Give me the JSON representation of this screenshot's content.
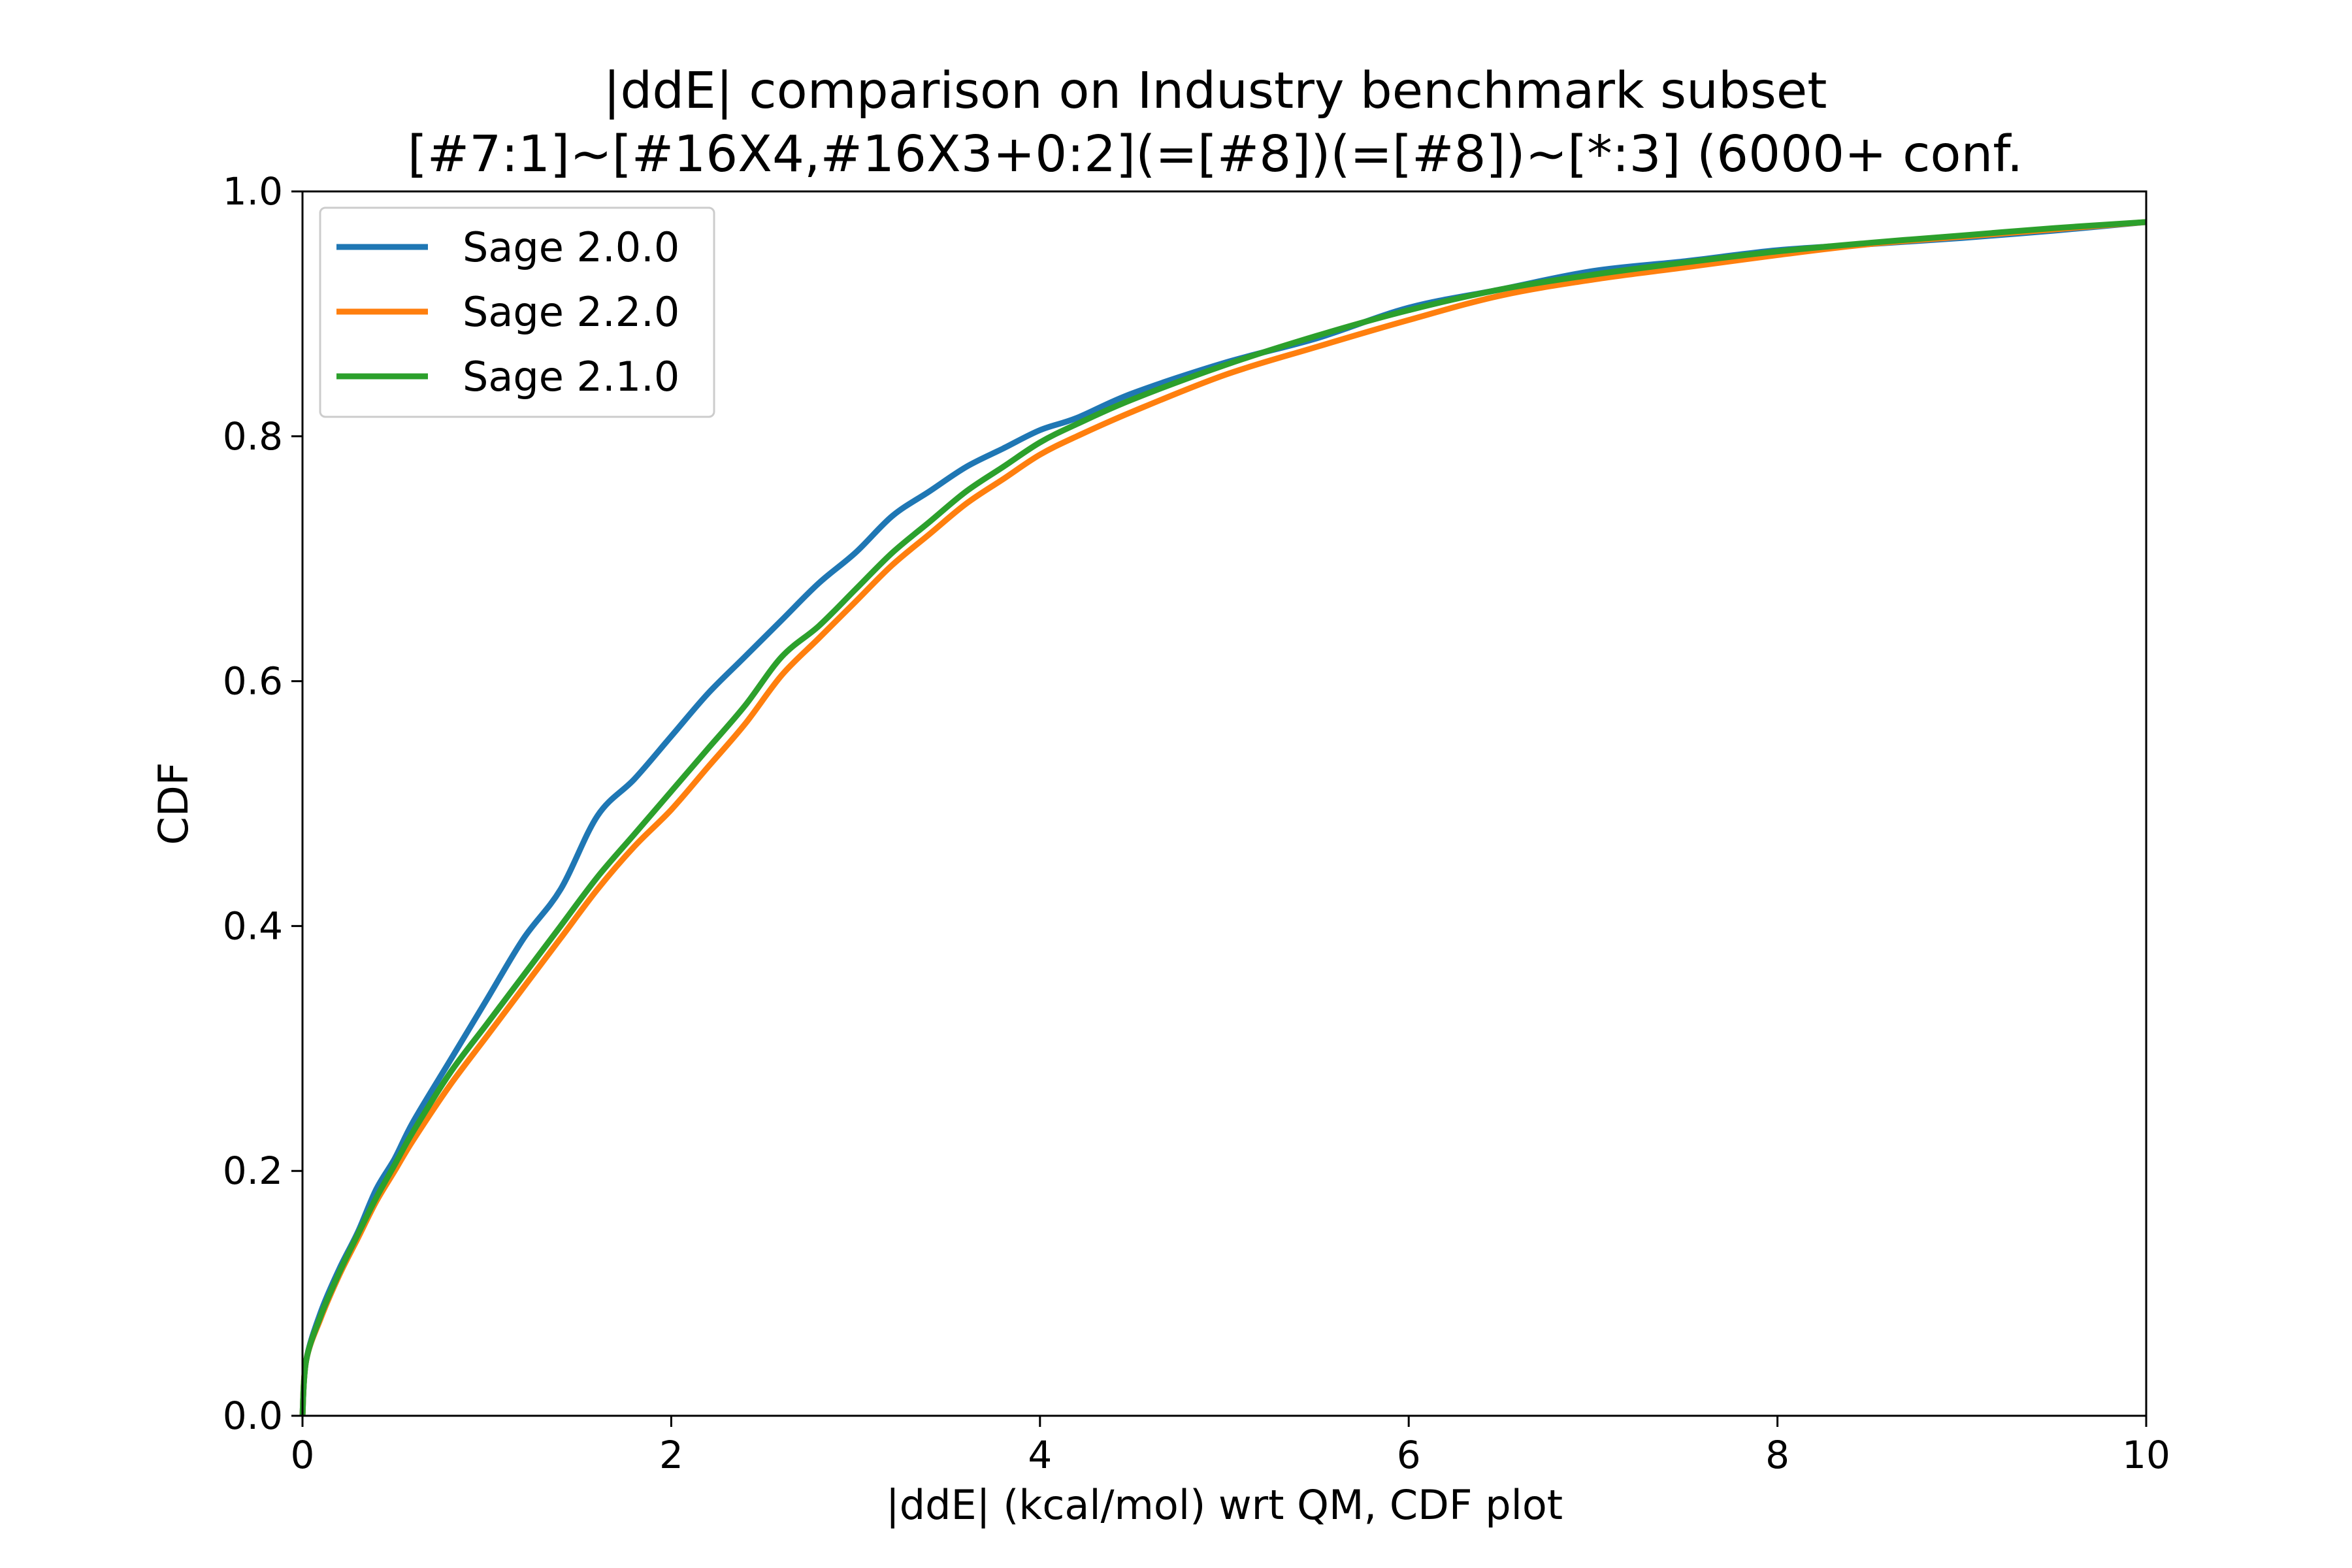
{
  "chart_data": {
    "type": "line",
    "title": "|ddE| comparison on Industry benchmark subset",
    "subtitle": "[#7:1]~[#16X4,#16X3+0:2](=[#8])(=[#8])~[*:3] (6000+ conf.",
    "xlabel": "|ddE| (kcal/mol) wrt QM, CDF plot",
    "ylabel": "CDF",
    "xlim": [
      0,
      10
    ],
    "ylim": [
      0,
      1.0
    ],
    "xticks": [
      "0",
      "2",
      "4",
      "6",
      "8",
      "10"
    ],
    "yticks": [
      "0.0",
      "0.2",
      "0.4",
      "0.6",
      "0.8",
      "1.0"
    ],
    "grid": false,
    "legend_position": "upper-left",
    "series": [
      {
        "name": "Sage 2.0.0",
        "color": "#1f77b4",
        "x": [
          0,
          0.02,
          0.1,
          0.2,
          0.3,
          0.4,
          0.5,
          0.6,
          0.8,
          1.0,
          1.2,
          1.4,
          1.6,
          1.8,
          2.0,
          2.2,
          2.4,
          2.6,
          2.8,
          3.0,
          3.2,
          3.4,
          3.6,
          3.8,
          4.0,
          4.2,
          4.5,
          5.0,
          5.5,
          6.0,
          6.5,
          7.0,
          7.5,
          8.0,
          8.5,
          9.0,
          9.5,
          10.0
        ],
        "y": [
          0.0,
          0.045,
          0.085,
          0.12,
          0.15,
          0.185,
          0.21,
          0.24,
          0.29,
          0.34,
          0.39,
          0.43,
          0.49,
          0.52,
          0.555,
          0.59,
          0.62,
          0.65,
          0.68,
          0.705,
          0.735,
          0.755,
          0.775,
          0.79,
          0.805,
          0.815,
          0.835,
          0.86,
          0.88,
          0.905,
          0.92,
          0.935,
          0.943,
          0.952,
          0.957,
          0.962,
          0.968,
          0.975
        ]
      },
      {
        "name": "Sage 2.2.0",
        "color": "#ff7f0e",
        "x": [
          0,
          0.02,
          0.1,
          0.2,
          0.3,
          0.4,
          0.5,
          0.6,
          0.8,
          1.0,
          1.2,
          1.4,
          1.6,
          1.8,
          2.0,
          2.2,
          2.4,
          2.6,
          2.8,
          3.0,
          3.2,
          3.4,
          3.6,
          3.8,
          4.0,
          4.2,
          4.5,
          5.0,
          5.5,
          6.0,
          6.5,
          7.0,
          7.5,
          8.0,
          8.5,
          9.0,
          9.5,
          10.0
        ],
        "y": [
          0.0,
          0.045,
          0.08,
          0.115,
          0.145,
          0.175,
          0.2,
          0.225,
          0.27,
          0.31,
          0.35,
          0.39,
          0.43,
          0.465,
          0.495,
          0.53,
          0.565,
          0.605,
          0.635,
          0.665,
          0.695,
          0.72,
          0.745,
          0.765,
          0.785,
          0.8,
          0.82,
          0.85,
          0.873,
          0.895,
          0.915,
          0.928,
          0.938,
          0.948,
          0.957,
          0.963,
          0.969,
          0.975
        ]
      },
      {
        "name": "Sage 2.1.0",
        "color": "#2ca02c",
        "x": [
          0,
          0.02,
          0.1,
          0.2,
          0.3,
          0.4,
          0.5,
          0.6,
          0.8,
          1.0,
          1.2,
          1.4,
          1.6,
          1.8,
          2.0,
          2.2,
          2.4,
          2.6,
          2.8,
          3.0,
          3.2,
          3.4,
          3.6,
          3.8,
          4.0,
          4.2,
          4.5,
          5.0,
          5.5,
          6.0,
          6.5,
          7.0,
          7.5,
          8.0,
          8.5,
          9.0,
          9.5,
          10.0
        ],
        "y": [
          0.0,
          0.045,
          0.082,
          0.117,
          0.148,
          0.178,
          0.205,
          0.232,
          0.28,
          0.32,
          0.36,
          0.4,
          0.44,
          0.475,
          0.51,
          0.545,
          0.58,
          0.62,
          0.645,
          0.675,
          0.705,
          0.73,
          0.755,
          0.775,
          0.795,
          0.81,
          0.83,
          0.858,
          0.882,
          0.903,
          0.92,
          0.932,
          0.942,
          0.951,
          0.958,
          0.964,
          0.97,
          0.975
        ]
      }
    ]
  }
}
